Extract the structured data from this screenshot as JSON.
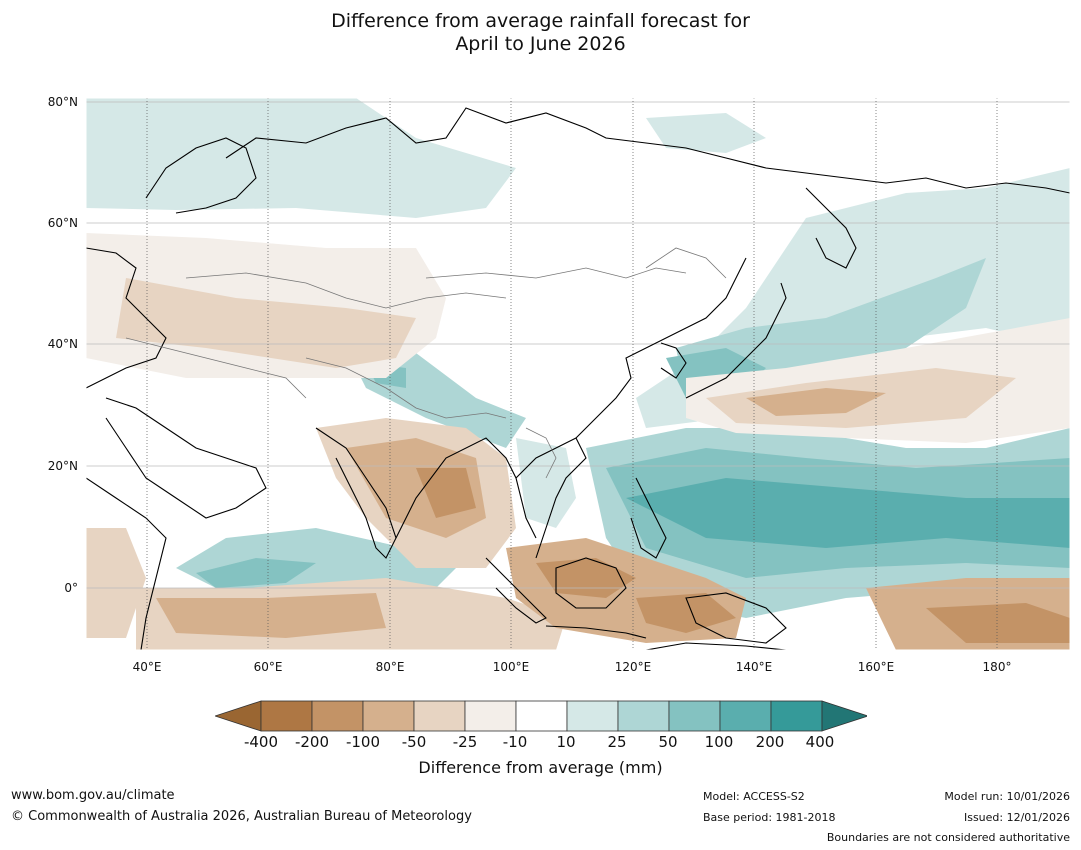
{
  "title": {
    "line1": "Difference from average rainfall forecast for",
    "line2": "April to June 2026"
  },
  "map": {
    "lat_labels": [
      "80°N",
      "60°N",
      "40°N",
      "20°N",
      "0°"
    ],
    "lon_labels": [
      "40°E",
      "60°E",
      "80°E",
      "100°E",
      "120°E",
      "140°E",
      "160°E",
      "180°"
    ],
    "region": "Asia and western Pacific",
    "lon_range": [
      30,
      192
    ],
    "lat_range": [
      -10,
      81
    ]
  },
  "colorbar": {
    "ticks": [
      "-400",
      "-200",
      "-100",
      "-50",
      "-25",
      "-10",
      "10",
      "25",
      "50",
      "100",
      "200",
      "400"
    ],
    "colors": [
      "#9a6632",
      "#ae7744",
      "#c39366",
      "#d5b08d",
      "#e7d4c2",
      "#f3eee9",
      "#ffffff",
      "#d5e8e7",
      "#aed6d5",
      "#84c2c1",
      "#5aaeae",
      "#359a99",
      "#227675"
    ],
    "title": "Difference from average (mm)"
  },
  "footer": {
    "website": "www.bom.gov.au/climate",
    "copyright": "© Commonwealth of Australia 2026, Australian Bureau of Meteorology",
    "model": "Model: ACCESS-S2",
    "base_period": "Base period: 1981-2018",
    "model_run": "Model run: 10/01/2026",
    "issued": "Issued: 12/01/2026",
    "disclaimer": "Boundaries are not considered authoritative"
  }
}
